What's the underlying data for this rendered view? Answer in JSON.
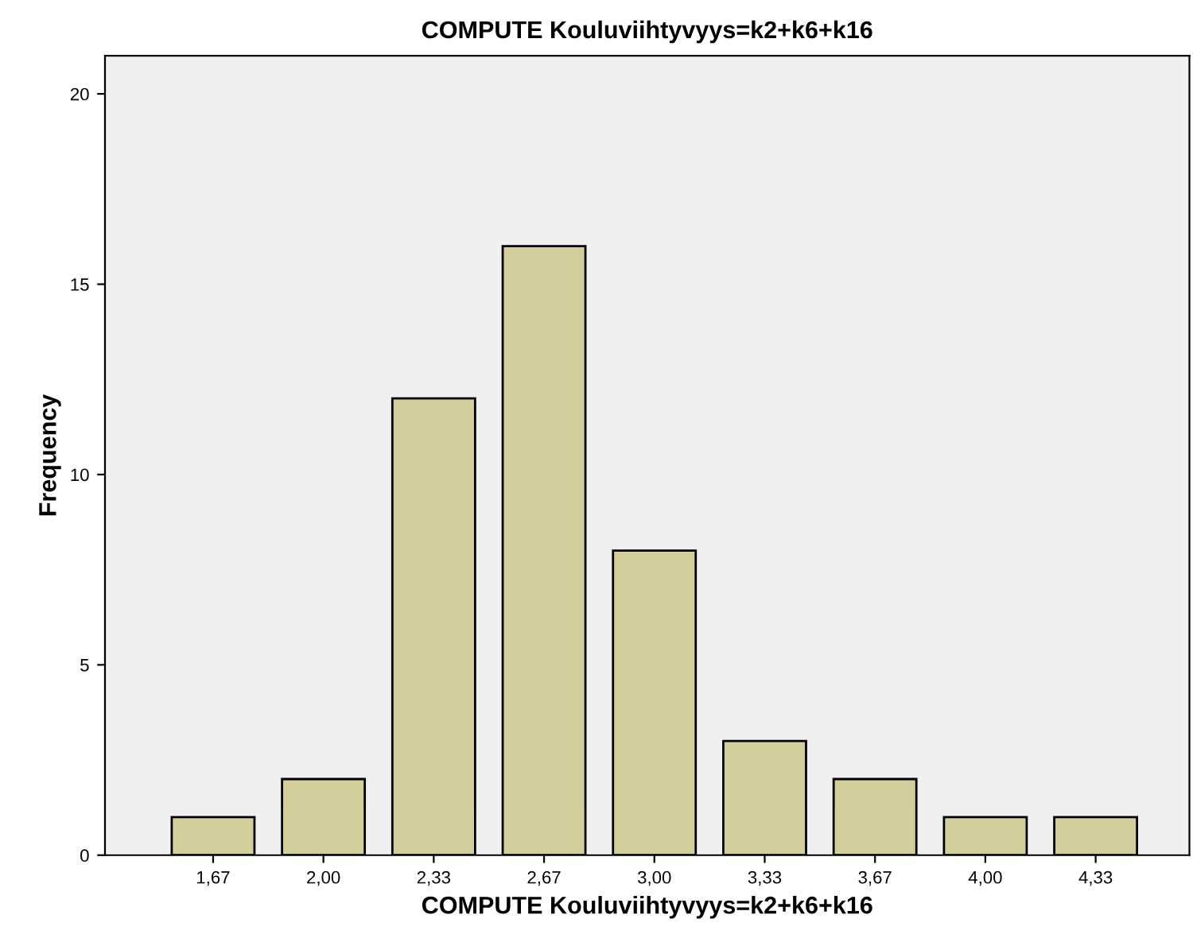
{
  "chart_data": {
    "type": "bar",
    "title": "COMPUTE Kouluviihtyvyys=k2+k6+k16",
    "xlabel": "COMPUTE Kouluviihtyvyys=k2+k6+k16",
    "ylabel": "Frequency",
    "categories": [
      "1,67",
      "2,00",
      "2,33",
      "2,67",
      "3,00",
      "3,33",
      "3,67",
      "4,00",
      "4,33"
    ],
    "values": [
      1,
      2,
      12,
      16,
      8,
      3,
      2,
      1,
      1
    ],
    "color": "#d3ce9c",
    "ylim": [
      0,
      21
    ],
    "yticks": [
      0,
      5,
      10,
      15,
      20
    ],
    "grid": false,
    "legend": false
  }
}
